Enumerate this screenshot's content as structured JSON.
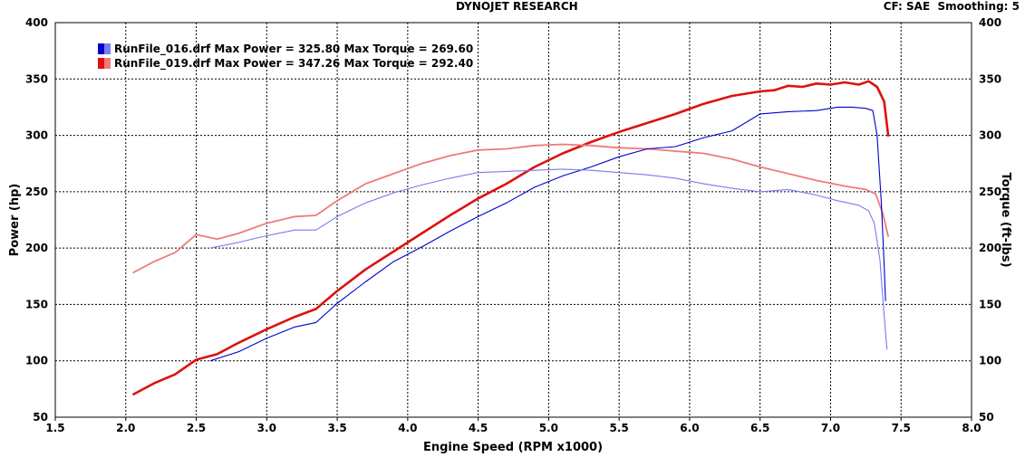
{
  "header": {
    "title": "DYNOJET RESEARCH",
    "cf_label": "CF: SAE",
    "smoothing_label": "Smoothing: 5"
  },
  "legend": [
    {
      "run": "RunFile_016.drf",
      "power_text": "Max Power = 325.80",
      "torque_text": "Max Torque = 269.60",
      "color": "#0000cc"
    },
    {
      "run": "RunFile_019.drf",
      "power_text": "Max Power = 347.26",
      "torque_text": "Max Torque = 292.40",
      "color": "#dd1111"
    }
  ],
  "chart_data": {
    "type": "line",
    "xlabel": "Engine Speed (RPM x1000)",
    "ylabel_left": "Power (hp)",
    "ylabel_right": "Torque (ft-lbs)",
    "xlim": [
      1.5,
      8.0
    ],
    "ylim_left": [
      50,
      400
    ],
    "ylim_right": [
      50,
      400
    ],
    "x_ticks": [
      "1.5",
      "2.0",
      "2.5",
      "3.0",
      "3.5",
      "4.0",
      "4.5",
      "5.0",
      "5.5",
      "6.0",
      "6.5",
      "7.0",
      "7.5",
      "8.0"
    ],
    "y_ticks": [
      "50",
      "100",
      "150",
      "200",
      "250",
      "300",
      "350",
      "400"
    ],
    "grid": true,
    "series": [
      {
        "name": "RunFile_019.drf",
        "quantity": "power",
        "color": "#dd1111",
        "x": [
          2.05,
          2.2,
          2.35,
          2.5,
          2.65,
          2.8,
          3.0,
          3.2,
          3.35,
          3.5,
          3.7,
          3.9,
          4.1,
          4.3,
          4.5,
          4.7,
          4.9,
          5.1,
          5.3,
          5.5,
          5.7,
          5.9,
          6.1,
          6.3,
          6.5,
          6.6,
          6.7,
          6.8,
          6.9,
          7.0,
          7.1,
          7.2,
          7.27,
          7.33,
          7.38,
          7.41
        ],
        "y": [
          70,
          80,
          88,
          101,
          106,
          116,
          128,
          139,
          146,
          162,
          181,
          197,
          213,
          229,
          244,
          257,
          272,
          284,
          294,
          303,
          311,
          319,
          328,
          335,
          339,
          340,
          344,
          343,
          346,
          345,
          347,
          345,
          348,
          343,
          330,
          299
        ]
      },
      {
        "name": "RunFile_019.drf",
        "quantity": "torque",
        "color": "#f07a7a",
        "x": [
          2.05,
          2.2,
          2.35,
          2.5,
          2.65,
          2.8,
          3.0,
          3.2,
          3.35,
          3.5,
          3.7,
          3.9,
          4.1,
          4.3,
          4.5,
          4.7,
          4.9,
          5.1,
          5.3,
          5.5,
          5.7,
          5.9,
          6.1,
          6.3,
          6.5,
          6.7,
          6.9,
          7.1,
          7.25,
          7.32,
          7.37,
          7.41
        ],
        "y": [
          178,
          188,
          196,
          212,
          208,
          213,
          222,
          228,
          229,
          242,
          257,
          266,
          275,
          282,
          287,
          288,
          291,
          292,
          291,
          289,
          288,
          286,
          284,
          279,
          272,
          266,
          260,
          255,
          252,
          248,
          231,
          210
        ]
      },
      {
        "name": "RunFile_016.drf",
        "quantity": "power",
        "color": "#0000cc",
        "x": [
          2.6,
          2.8,
          3.0,
          3.2,
          3.35,
          3.5,
          3.7,
          3.9,
          4.1,
          4.3,
          4.5,
          4.7,
          4.9,
          5.1,
          5.3,
          5.5,
          5.7,
          5.9,
          6.1,
          6.3,
          6.5,
          6.7,
          6.9,
          7.05,
          7.15,
          7.25,
          7.3,
          7.33,
          7.36,
          7.38,
          7.39
        ],
        "y": [
          100,
          108,
          120,
          130,
          134,
          151,
          170,
          188,
          201,
          215,
          228,
          240,
          254,
          264,
          272,
          281,
          288,
          290,
          298,
          304,
          319,
          321,
          322,
          325,
          325,
          324,
          322,
          300,
          240,
          185,
          153
        ]
      },
      {
        "name": "RunFile_016.drf",
        "quantity": "torque",
        "color": "#7a7af0",
        "x": [
          2.6,
          2.8,
          3.0,
          3.2,
          3.35,
          3.5,
          3.7,
          3.9,
          4.1,
          4.3,
          4.5,
          4.7,
          4.9,
          5.1,
          5.3,
          5.5,
          5.7,
          5.9,
          6.1,
          6.3,
          6.5,
          6.7,
          6.9,
          7.05,
          7.2,
          7.27,
          7.31,
          7.35,
          7.38,
          7.4
        ],
        "y": [
          200,
          205,
          211,
          216,
          216,
          228,
          240,
          249,
          256,
          262,
          267,
          268,
          269,
          270,
          269,
          267,
          265,
          262,
          257,
          253,
          250,
          252,
          247,
          242,
          238,
          233,
          222,
          190,
          140,
          110
        ]
      }
    ]
  }
}
